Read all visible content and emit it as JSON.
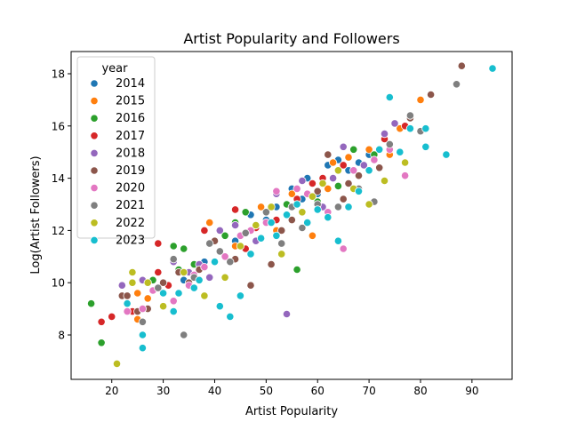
{
  "chart_data": {
    "type": "scatter",
    "title": "Artist Popularity and Followers",
    "xlabel": "Artist Popularity",
    "ylabel": "Log(Artist Followers)",
    "xlim": [
      12.1,
      97.8
    ],
    "ylim": [
      6.3,
      18.85
    ],
    "xticks": [
      10,
      20,
      30,
      40,
      50,
      60,
      70,
      80,
      90
    ],
    "yticks": [
      8,
      10,
      12,
      14,
      16,
      18
    ],
    "grid": false,
    "legend": {
      "title": "year",
      "placement": "top-left"
    },
    "series": [
      {
        "name": "2014",
        "color": "#1f77b4",
        "points": [
          [
            38,
            10.8
          ],
          [
            40,
            11.6
          ],
          [
            44,
            11.6
          ],
          [
            47,
            12.6
          ],
          [
            52,
            12.9
          ],
          [
            55,
            13.6
          ],
          [
            58,
            14.0
          ],
          [
            60,
            13.4
          ],
          [
            62,
            14.5
          ],
          [
            64,
            14.7
          ],
          [
            66,
            14.3
          ],
          [
            70,
            14.9
          ],
          [
            73,
            15.5
          ],
          [
            34,
            10.1
          ],
          [
            50,
            12.4
          ],
          [
            57,
            13.2
          ],
          [
            61,
            13.8
          ],
          [
            68,
            14.6
          ]
        ]
      },
      {
        "name": "2015",
        "color": "#ff7f0e",
        "points": [
          [
            25,
            8.6
          ],
          [
            25,
            9.6
          ],
          [
            39,
            12.3
          ],
          [
            44,
            11.4
          ],
          [
            49,
            12.9
          ],
          [
            55,
            13.4
          ],
          [
            59,
            11.8
          ],
          [
            63,
            14.6
          ],
          [
            66,
            14.8
          ],
          [
            70,
            15.1
          ],
          [
            74,
            14.9
          ],
          [
            80,
            17.0
          ],
          [
            27,
            9.4
          ],
          [
            52,
            12.0
          ],
          [
            62,
            13.6
          ],
          [
            68,
            13.6
          ],
          [
            76,
            15.9
          ]
        ]
      },
      {
        "name": "2016",
        "color": "#2ca02c",
        "points": [
          [
            16,
            9.2
          ],
          [
            18,
            7.7
          ],
          [
            28,
            10.1
          ],
          [
            32,
            11.4
          ],
          [
            34,
            11.3
          ],
          [
            36,
            10.7
          ],
          [
            44,
            12.3
          ],
          [
            46,
            12.7
          ],
          [
            50,
            12.3
          ],
          [
            56,
            10.5
          ],
          [
            60,
            13.1
          ],
          [
            64,
            13.7
          ],
          [
            67,
            15.1
          ],
          [
            71,
            14.9
          ],
          [
            33,
            10.5
          ],
          [
            42,
            11.8
          ],
          [
            54,
            13.0
          ]
        ]
      },
      {
        "name": "2017",
        "color": "#d62728",
        "points": [
          [
            18,
            8.5
          ],
          [
            20,
            8.7
          ],
          [
            24,
            8.9
          ],
          [
            29,
            10.4
          ],
          [
            29,
            11.5
          ],
          [
            38,
            12.0
          ],
          [
            44,
            12.8
          ],
          [
            48,
            12.1
          ],
          [
            52,
            12.4
          ],
          [
            56,
            13.2
          ],
          [
            61,
            14.0
          ],
          [
            65,
            14.5
          ],
          [
            73,
            15.5
          ],
          [
            77,
            16.0
          ],
          [
            31,
            9.9
          ],
          [
            46,
            11.3
          ],
          [
            59,
            13.8
          ]
        ]
      },
      {
        "name": "2018",
        "color": "#9467bd",
        "points": [
          [
            22,
            9.9
          ],
          [
            26,
            10.1
          ],
          [
            32,
            10.8
          ],
          [
            35,
            10.4
          ],
          [
            39,
            10.2
          ],
          [
            41,
            12.0
          ],
          [
            44,
            12.2
          ],
          [
            48,
            11.6
          ],
          [
            52,
            13.4
          ],
          [
            54,
            8.8
          ],
          [
            57,
            13.9
          ],
          [
            61,
            12.9
          ],
          [
            65,
            15.2
          ],
          [
            69,
            14.5
          ],
          [
            73,
            15.7
          ],
          [
            75,
            16.1
          ],
          [
            30,
            9.6
          ],
          [
            37,
            10.7
          ],
          [
            63,
            14.0
          ]
        ]
      },
      {
        "name": "2019",
        "color": "#8c564b",
        "points": [
          [
            22,
            9.5
          ],
          [
            23,
            9.5
          ],
          [
            25,
            8.9
          ],
          [
            27,
            9.0
          ],
          [
            30,
            10.0
          ],
          [
            33,
            10.4
          ],
          [
            37,
            10.5
          ],
          [
            40,
            11.6
          ],
          [
            44,
            10.9
          ],
          [
            47,
            9.9
          ],
          [
            51,
            10.7
          ],
          [
            53,
            12.0
          ],
          [
            57,
            12.7
          ],
          [
            60,
            13.5
          ],
          [
            62,
            14.9
          ],
          [
            65,
            13.2
          ],
          [
            68,
            14.1
          ],
          [
            72,
            14.4
          ],
          [
            78,
            16.3
          ],
          [
            82,
            17.2
          ],
          [
            88,
            18.3
          ],
          [
            35,
            10.0
          ],
          [
            55,
            12.4
          ],
          [
            66,
            13.8
          ]
        ]
      },
      {
        "name": "2020",
        "color": "#e377c2",
        "points": [
          [
            23,
            8.9
          ],
          [
            26,
            9.0
          ],
          [
            28,
            9.7
          ],
          [
            32,
            9.3
          ],
          [
            35,
            9.9
          ],
          [
            38,
            10.6
          ],
          [
            42,
            11.0
          ],
          [
            45,
            11.8
          ],
          [
            50,
            12.3
          ],
          [
            52,
            13.5
          ],
          [
            58,
            13.4
          ],
          [
            62,
            12.7
          ],
          [
            65,
            11.3
          ],
          [
            67,
            14.3
          ],
          [
            71,
            14.7
          ],
          [
            74,
            15.1
          ],
          [
            77,
            14.1
          ],
          [
            36,
            10.3
          ],
          [
            47,
            12.0
          ],
          [
            56,
            13.6
          ]
        ]
      },
      {
        "name": "2021",
        "color": "#7f7f7f",
        "points": [
          [
            26,
            8.5
          ],
          [
            32,
            10.9
          ],
          [
            34,
            8.0
          ],
          [
            36,
            10.2
          ],
          [
            39,
            11.5
          ],
          [
            43,
            10.8
          ],
          [
            46,
            11.9
          ],
          [
            50,
            12.7
          ],
          [
            53,
            11.5
          ],
          [
            57,
            12.1
          ],
          [
            60,
            13.0
          ],
          [
            64,
            12.9
          ],
          [
            68,
            13.6
          ],
          [
            71,
            13.1
          ],
          [
            74,
            15.3
          ],
          [
            78,
            16.4
          ],
          [
            80,
            15.8
          ],
          [
            87,
            17.6
          ],
          [
            29,
            9.8
          ],
          [
            41,
            11.2
          ],
          [
            55,
            12.9
          ]
        ]
      },
      {
        "name": "2022",
        "color": "#bcbd22",
        "points": [
          [
            21,
            6.9
          ],
          [
            24,
            10.0
          ],
          [
            24,
            10.4
          ],
          [
            30,
            9.1
          ],
          [
            34,
            10.4
          ],
          [
            38,
            9.5
          ],
          [
            42,
            10.2
          ],
          [
            45,
            11.4
          ],
          [
            48,
            12.2
          ],
          [
            51,
            12.9
          ],
          [
            53,
            11.1
          ],
          [
            57,
            12.7
          ],
          [
            61,
            13.8
          ],
          [
            64,
            14.3
          ],
          [
            67,
            13.6
          ],
          [
            70,
            13.0
          ],
          [
            73,
            13.9
          ],
          [
            77,
            14.6
          ],
          [
            27,
            10.0
          ],
          [
            40,
            10.8
          ],
          [
            59,
            13.3
          ]
        ]
      },
      {
        "name": "2023",
        "color": "#17becf",
        "points": [
          [
            23,
            9.2
          ],
          [
            26,
            8.0
          ],
          [
            26,
            7.5
          ],
          [
            30,
            9.6
          ],
          [
            32,
            8.9
          ],
          [
            33,
            9.6
          ],
          [
            36,
            9.8
          ],
          [
            40,
            10.8
          ],
          [
            41,
            9.1
          ],
          [
            43,
            8.7
          ],
          [
            45,
            9.5
          ],
          [
            47,
            11.1
          ],
          [
            49,
            11.7
          ],
          [
            51,
            12.3
          ],
          [
            54,
            12.6
          ],
          [
            56,
            13.0
          ],
          [
            58,
            12.3
          ],
          [
            60,
            12.8
          ],
          [
            62,
            12.5
          ],
          [
            64,
            11.6
          ],
          [
            66,
            12.9
          ],
          [
            68,
            13.5
          ],
          [
            70,
            14.3
          ],
          [
            72,
            15.1
          ],
          [
            74,
            17.1
          ],
          [
            76,
            15.0
          ],
          [
            78,
            15.9
          ],
          [
            81,
            15.9
          ],
          [
            81,
            15.2
          ],
          [
            85,
            14.9
          ],
          [
            94,
            18.2
          ],
          [
            37,
            10.1
          ],
          [
            52,
            11.8
          ]
        ]
      }
    ]
  }
}
